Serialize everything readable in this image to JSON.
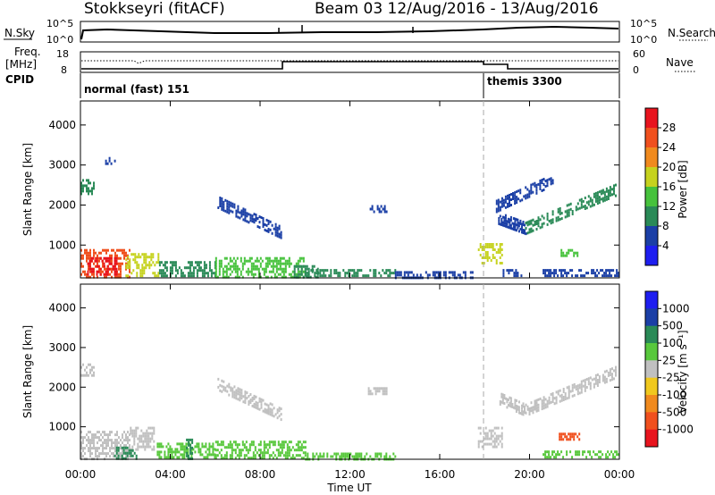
{
  "header": {
    "station": "Stokkseyri (fitACF)",
    "beam_and_dates": "Beam 03  12/Aug/2016 - 13/Aug/2016"
  },
  "side_labels": {
    "nsky": "N.Sky",
    "freq_line1": "Freq.",
    "freq_line2": "[MHz]",
    "cpid": "CPID",
    "nsearch": "N.Search",
    "nave": "Nave"
  },
  "noise_axis": {
    "left_top": "10^5",
    "left_bottom": "10^0",
    "right_top": "10^5",
    "right_bottom": "10^0"
  },
  "freq_axis": {
    "left_top": "18",
    "left_bottom": "8",
    "right_top": "60",
    "right_bottom": "0"
  },
  "cpid_labels": [
    "normal (fast) 151",
    "themis 3300"
  ],
  "colors": {
    "power": [
      "#1e1ef0",
      "#1b3fa6",
      "#2a8a57",
      "#46c23c",
      "#c6d21e",
      "#f08a1e",
      "#f0501e",
      "#e8141e"
    ],
    "velocity_neg": [
      "#e8141e",
      "#f0501e",
      "#f08a1e",
      "#f0c81e"
    ],
    "velocity_zero": "#c0c0c0",
    "velocity_pos": [
      "#58c83c",
      "#2a8a57",
      "#1b3fa6",
      "#1e1ef0"
    ]
  },
  "chart_data": [
    {
      "type": "heatmap",
      "name": "power",
      "ylabel": "Slant Range [km]",
      "ylim": [
        180,
        4600
      ],
      "yticks": [
        "1000",
        "2000",
        "3000",
        "4000"
      ],
      "xlim_hours": [
        0,
        24
      ],
      "xticks": [
        "00:00",
        "04:00",
        "08:00",
        "12:00",
        "16:00",
        "20:00",
        "00:00"
      ],
      "colorbar_label": "Power [dB]",
      "colorbar_ticks": [
        "4",
        "8",
        "12",
        "16",
        "20",
        "24",
        "28"
      ],
      "regions": [
        {
          "t": [
            0.0,
            2.2
          ],
          "r": [
            200,
            900
          ],
          "level": 6
        },
        {
          "t": [
            0.3,
            1.6
          ],
          "r": [
            250,
            700
          ],
          "level": 7
        },
        {
          "t": [
            2.0,
            3.5
          ],
          "r": [
            200,
            800
          ],
          "level": 4
        },
        {
          "t": [
            0.0,
            0.6
          ],
          "r": [
            2300,
            2650
          ],
          "level": 2
        },
        {
          "t": [
            1.1,
            1.5
          ],
          "r": [
            3000,
            3200
          ],
          "level": 1
        },
        {
          "t": [
            3.5,
            6.0
          ],
          "r": [
            200,
            600
          ],
          "level": 2
        },
        {
          "t": [
            6.0,
            10.0
          ],
          "r": [
            200,
            700
          ],
          "level": 3
        },
        {
          "t": [
            10.0,
            14.0
          ],
          "r": [
            200,
            400
          ],
          "level": 2
        },
        {
          "t": [
            9.5,
            10.6
          ],
          "r": [
            200,
            500
          ],
          "level": 2
        },
        {
          "t": [
            14.0,
            17.5
          ],
          "r": [
            200,
            350
          ],
          "level": 1
        },
        {
          "t": [
            12.8,
            13.6
          ],
          "r": [
            1800,
            2000
          ],
          "level": 1
        },
        {
          "t": [
            17.7,
            18.8
          ],
          "r": [
            550,
            1050
          ],
          "level": 4
        },
        {
          "t": [
            18.8,
            19.6
          ],
          "r": [
            200,
            400
          ],
          "level": 1
        },
        {
          "t": [
            20.5,
            24.0
          ],
          "r": [
            200,
            400
          ],
          "level": 1
        },
        {
          "t": [
            21.3,
            22.2
          ],
          "r": [
            700,
            900
          ],
          "level": 3
        }
      ],
      "arcs": [
        {
          "t": [
            6.1,
            8.9
          ],
          "r": [
            2100,
            1350
          ],
          "level": 1
        },
        {
          "t": [
            18.6,
            19.8
          ],
          "r": [
            1700,
            1450
          ],
          "level": 1
        },
        {
          "t": [
            19.8,
            23.8
          ],
          "r": [
            1450,
            2400
          ],
          "level": 2
        },
        {
          "t": [
            18.5,
            21.0
          ],
          "r": [
            2000,
            2650
          ],
          "level": 1
        }
      ]
    },
    {
      "type": "heatmap",
      "name": "velocity",
      "ylabel": "Slant Range [km]",
      "ylim": [
        180,
        4600
      ],
      "yticks": [
        "1000",
        "2000",
        "3000",
        "4000"
      ],
      "xlim_hours": [
        0,
        24
      ],
      "xticks": [
        "00:00",
        "04:00",
        "08:00",
        "12:00",
        "16:00",
        "20:00",
        "00:00"
      ],
      "xlabel": "Time UT",
      "colorbar_label": "Velocity [m s⁻¹]",
      "colorbar_ticks": [
        "-1000",
        "-500",
        "-100",
        "-25",
        "25",
        "100",
        "500",
        "1000"
      ],
      "regions": [
        {
          "t": [
            0.0,
            2.2
          ],
          "r": [
            200,
            900
          ],
          "color": "zero"
        },
        {
          "t": [
            2.2,
            3.3
          ],
          "r": [
            400,
            1000
          ],
          "color": "zero"
        },
        {
          "t": [
            0.0,
            0.6
          ],
          "r": [
            2300,
            2600
          ],
          "color": "zero"
        },
        {
          "t": [
            3.4,
            6.0
          ],
          "r": [
            200,
            600
          ],
          "color": "pos1"
        },
        {
          "t": [
            6.0,
            10.0
          ],
          "r": [
            200,
            650
          ],
          "color": "pos1"
        },
        {
          "t": [
            1.5,
            2.5
          ],
          "r": [
            200,
            500
          ],
          "color": "pos2"
        },
        {
          "t": [
            4.7,
            5.0
          ],
          "r": [
            200,
            700
          ],
          "color": "pos2"
        },
        {
          "t": [
            10.0,
            14.0
          ],
          "r": [
            200,
            350
          ],
          "color": "pos1"
        },
        {
          "t": [
            17.7,
            18.8
          ],
          "r": [
            500,
            1000
          ],
          "color": "zero"
        },
        {
          "t": [
            12.8,
            13.6
          ],
          "r": [
            1800,
            2000
          ],
          "color": "zero"
        },
        {
          "t": [
            21.3,
            22.2
          ],
          "r": [
            650,
            850
          ],
          "color": "neg2"
        },
        {
          "t": [
            20.5,
            24.0
          ],
          "r": [
            200,
            400
          ],
          "color": "pos1"
        }
      ],
      "arcs": [
        {
          "t": [
            6.1,
            8.9
          ],
          "r": [
            2100,
            1350
          ],
          "color": "zero"
        },
        {
          "t": [
            18.6,
            19.8
          ],
          "r": [
            1750,
            1450
          ],
          "color": "zero"
        },
        {
          "t": [
            19.8,
            23.8
          ],
          "r": [
            1450,
            2400
          ],
          "color": "zero"
        }
      ]
    }
  ]
}
